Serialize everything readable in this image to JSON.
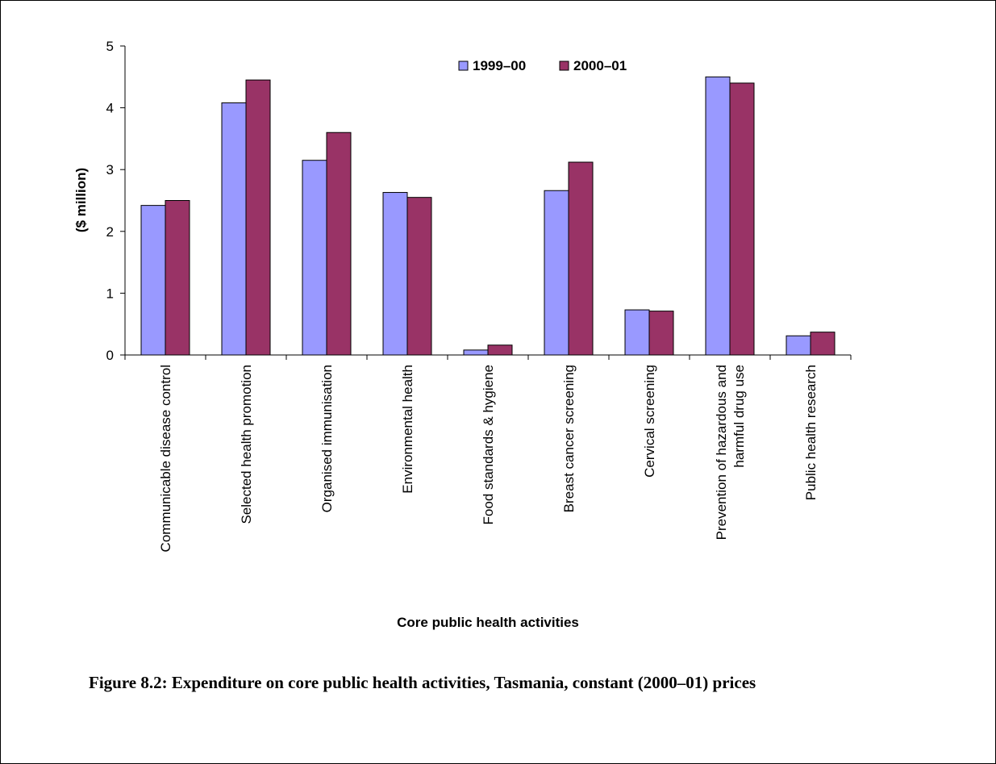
{
  "chart_data": {
    "type": "bar",
    "categories": [
      [
        "Communicable disease control"
      ],
      [
        "Selected health promotion"
      ],
      [
        "Organised immunisation"
      ],
      [
        "Environmental health"
      ],
      [
        "Food standards & hygiene"
      ],
      [
        "Breast cancer screening"
      ],
      [
        "Cervical screening"
      ],
      [
        "Prevention of hazardous and",
        "harmful drug use"
      ],
      [
        "Public health research"
      ]
    ],
    "series": [
      {
        "name": "1999–00",
        "color": "#9999ff",
        "values": [
          2.42,
          4.08,
          3.15,
          2.63,
          0.08,
          2.66,
          0.73,
          4.5,
          0.31
        ]
      },
      {
        "name": "2000–01",
        "color": "#993366",
        "values": [
          2.5,
          4.45,
          3.6,
          2.55,
          0.16,
          3.12,
          0.71,
          4.4,
          0.37
        ]
      }
    ],
    "xlabel": "Core public health activities",
    "ylabel": "($ million)",
    "ylim": [
      0,
      5
    ],
    "yticks": [
      "0",
      "1",
      "2",
      "3",
      "4",
      "5"
    ],
    "grid": false,
    "legend": "top-center"
  },
  "caption": "Figure 8.2: Expenditure on core public health activities, Tasmania, constant (2000–01) prices"
}
